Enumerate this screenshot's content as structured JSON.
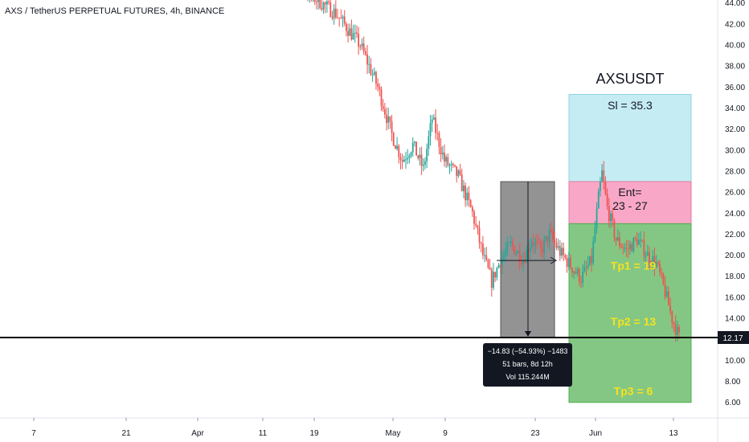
{
  "header": {
    "symbol_line": "AXS / TetherUS PERPETUAL FUTURES, 4h, BINANCE"
  },
  "colors": {
    "up": "#26a69a",
    "down": "#ef5350",
    "stop_zone": "#c5ecf3",
    "entry_zone": "#f8a8c6",
    "target_zone": "#84c784",
    "target_text": "#f6e21e",
    "measure_box": "#808080",
    "price_tag": "#131722"
  },
  "chart_data": {
    "type": "candlestick",
    "title": "",
    "y_axis": {
      "min": 5,
      "max": 45,
      "ticks": [
        "6.00",
        "8.00",
        "10.00",
        "12.00",
        "14.00",
        "16.00",
        "18.00",
        "20.00",
        "22.00",
        "24.00",
        "26.00",
        "28.00",
        "30.00",
        "32.00",
        "34.00",
        "36.00",
        "38.00",
        "40.00",
        "42.00",
        "44.00"
      ]
    },
    "x_ticks": [
      "7",
      "21",
      "Apr",
      "11",
      "19",
      "May",
      "9",
      "23",
      "Jun",
      "13"
    ],
    "price_path": [
      {
        "t": 0,
        "p": 46.5
      },
      {
        "t": 20,
        "p": 45.2
      },
      {
        "t": 38,
        "p": 43.0
      },
      {
        "t": 52,
        "p": 40.0
      },
      {
        "t": 62,
        "p": 36.0
      },
      {
        "t": 70,
        "p": 31.5
      },
      {
        "t": 76,
        "p": 29.0
      },
      {
        "t": 82,
        "p": 30.5
      },
      {
        "t": 88,
        "p": 28.2
      },
      {
        "t": 93,
        "p": 33.0
      },
      {
        "t": 100,
        "p": 29.0
      },
      {
        "t": 108,
        "p": 27.5
      },
      {
        "t": 116,
        "p": 24.0
      },
      {
        "t": 122,
        "p": 20.0
      },
      {
        "t": 127,
        "p": 17.5
      },
      {
        "t": 132,
        "p": 19.5
      },
      {
        "t": 138,
        "p": 21.0
      },
      {
        "t": 145,
        "p": 19.6
      },
      {
        "t": 150,
        "p": 21.5
      },
      {
        "t": 155,
        "p": 20.4
      },
      {
        "t": 160,
        "p": 22.0
      },
      {
        "t": 166,
        "p": 20.3
      },
      {
        "t": 172,
        "p": 19.0
      },
      {
        "t": 178,
        "p": 17.8
      },
      {
        "t": 184,
        "p": 19.5
      },
      {
        "t": 188,
        "p": 25.5
      },
      {
        "t": 190,
        "p": 27.8
      },
      {
        "t": 193,
        "p": 24.5
      },
      {
        "t": 198,
        "p": 21.5
      },
      {
        "t": 204,
        "p": 20.5
      },
      {
        "t": 210,
        "p": 21.5
      },
      {
        "t": 216,
        "p": 20.0
      },
      {
        "t": 221,
        "p": 19.2
      },
      {
        "t": 226,
        "p": 16.5
      },
      {
        "t": 230,
        "p": 14.0
      },
      {
        "t": 234,
        "p": 12.17
      }
    ],
    "horizontal_line": {
      "price": 12.17,
      "label": "12.17"
    },
    "measure": {
      "lines": [
        "−14.83 (−54.93%) −1483",
        "51 bars, 8d 12h",
        "Vol 115.244M"
      ]
    },
    "position": {
      "title": "AXSUSDT",
      "stop_label": "Sl = 35.3",
      "entry_label_1": "Ent=",
      "entry_label_2": "23 - 27",
      "zones": {
        "stop_top": 35.3,
        "entry_top": 27,
        "entry_bottom": 23,
        "target_bottom": 6
      },
      "targets": [
        {
          "label": "Tp1 = 19",
          "price": 19
        },
        {
          "label": "Tp2 = 13",
          "price": 13
        },
        {
          "label": "Tp3 = 6",
          "price": 6
        }
      ]
    }
  }
}
